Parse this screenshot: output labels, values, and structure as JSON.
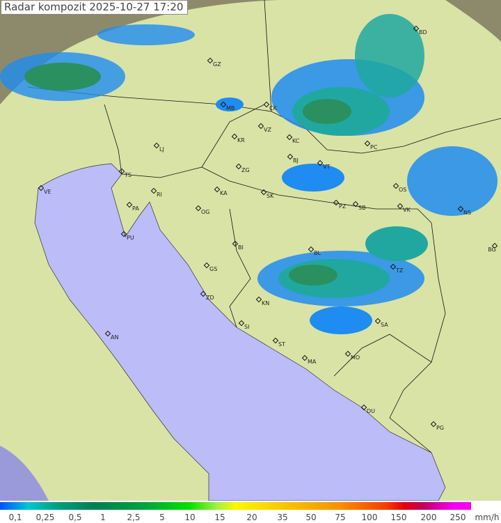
{
  "title": "Radar kompozit  2025-10-27   17:20",
  "legend": {
    "unit": "mm/h",
    "ticks": [
      "0,1",
      "0,25",
      "0,5",
      "1",
      "2,5",
      "5",
      "10",
      "15",
      "20",
      "35",
      "50",
      "75",
      "100",
      "150",
      "200",
      "250"
    ]
  },
  "colors": {
    "sea": "#bcbcf8",
    "land": "#d8e6a8",
    "outside": "#8a8a70",
    "radar_light": "#1e8cf0",
    "radar_mid": "#20a8a0",
    "radar_dark": "#2a9060"
  },
  "cities": [
    {
      "code": "GZ"
    },
    {
      "code": "BD"
    },
    {
      "code": "MB"
    },
    {
      "code": "CK"
    },
    {
      "code": "VZ"
    },
    {
      "code": "KR"
    },
    {
      "code": "KC"
    },
    {
      "code": "PC"
    },
    {
      "code": "LJ"
    },
    {
      "code": "BJ"
    },
    {
      "code": "VT"
    },
    {
      "code": "ZG"
    },
    {
      "code": "TS"
    },
    {
      "code": "VE"
    },
    {
      "code": "KA"
    },
    {
      "code": "SK"
    },
    {
      "code": "OS"
    },
    {
      "code": "RI"
    },
    {
      "code": "PA"
    },
    {
      "code": "OG"
    },
    {
      "code": "PZ"
    },
    {
      "code": "SB"
    },
    {
      "code": "VK"
    },
    {
      "code": "NS"
    },
    {
      "code": "PU"
    },
    {
      "code": "BI"
    },
    {
      "code": "BL"
    },
    {
      "code": "BG"
    },
    {
      "code": "GS"
    },
    {
      "code": "TZ"
    },
    {
      "code": "ZD"
    },
    {
      "code": "KN"
    },
    {
      "code": "SA"
    },
    {
      "code": "SI"
    },
    {
      "code": "AN"
    },
    {
      "code": "ST"
    },
    {
      "code": "MA"
    },
    {
      "code": "MO"
    },
    {
      "code": "DU"
    },
    {
      "code": "PG"
    }
  ]
}
